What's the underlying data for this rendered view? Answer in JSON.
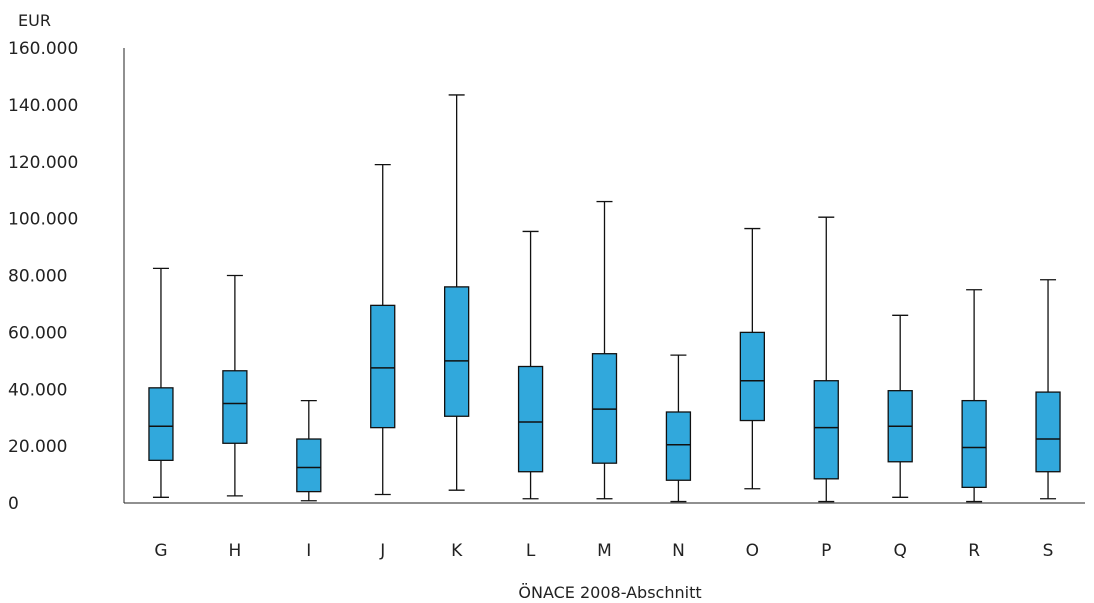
{
  "chart_data": {
    "type": "boxplot",
    "ylabel": "EUR",
    "xlabel": "ÖNACE 2008-Abschnitt",
    "ylim": [
      0,
      160000
    ],
    "yticks": [
      0,
      20000,
      40000,
      60000,
      80000,
      100000,
      120000,
      140000,
      160000
    ],
    "ytick_labels": [
      "0",
      "20.000",
      "40.000",
      "60.000",
      "80.000",
      "100.000",
      "120.000",
      "140.000",
      "160.000"
    ],
    "grid": false,
    "box_color": "#31a8dc",
    "categories": [
      "G",
      "H",
      "I",
      "J",
      "K",
      "L",
      "M",
      "N",
      "O",
      "P",
      "Q",
      "R",
      "S"
    ],
    "boxes": [
      {
        "category": "G",
        "min": 2000,
        "q1": 15000,
        "median": 27000,
        "q3": 40500,
        "max": 82500
      },
      {
        "category": "H",
        "min": 2500,
        "q1": 21000,
        "median": 35000,
        "q3": 46500,
        "max": 80000
      },
      {
        "category": "I",
        "min": 800,
        "q1": 4000,
        "median": 12500,
        "q3": 22500,
        "max": 36000
      },
      {
        "category": "J",
        "min": 3000,
        "q1": 26500,
        "median": 47500,
        "q3": 69500,
        "max": 119000
      },
      {
        "category": "K",
        "min": 4500,
        "q1": 30500,
        "median": 50000,
        "q3": 76000,
        "max": 143500
      },
      {
        "category": "L",
        "min": 1500,
        "q1": 11000,
        "median": 28500,
        "q3": 48000,
        "max": 95500
      },
      {
        "category": "M",
        "min": 1500,
        "q1": 14000,
        "median": 33000,
        "q3": 52500,
        "max": 106000
      },
      {
        "category": "N",
        "min": 500,
        "q1": 8000,
        "median": 20500,
        "q3": 32000,
        "max": 52000
      },
      {
        "category": "O",
        "min": 5000,
        "q1": 29000,
        "median": 43000,
        "q3": 60000,
        "max": 96500
      },
      {
        "category": "P",
        "min": 500,
        "q1": 8500,
        "median": 26500,
        "q3": 43000,
        "max": 100500
      },
      {
        "category": "Q",
        "min": 2000,
        "q1": 14500,
        "median": 27000,
        "q3": 39500,
        "max": 66000
      },
      {
        "category": "R",
        "min": 500,
        "q1": 5500,
        "median": 19500,
        "q3": 36000,
        "max": 75000
      },
      {
        "category": "S",
        "min": 1500,
        "q1": 11000,
        "median": 22500,
        "q3": 39000,
        "max": 78500
      }
    ]
  }
}
